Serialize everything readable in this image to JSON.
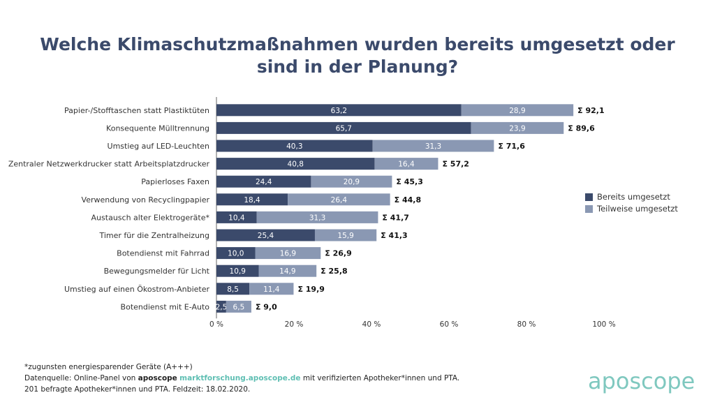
{
  "title_line1": "Welche Klimaschutzmaßnahmen wurden bereits umgesetzt oder",
  "title_line2": "sind in der Planung?",
  "colors": {
    "dark": "#3b4a6b",
    "light": "#8a98b3",
    "title": "#3b4a6b",
    "accent": "#5fbfb3"
  },
  "chart_data": {
    "type": "bar",
    "orientation": "horizontal",
    "stacked": true,
    "categories": [
      "Papier-/Stofftaschen statt Plastiktüten",
      "Konsequente Mülltrennung",
      "Umstieg auf LED-Leuchten",
      "Zentraler Netzwerkdrucker statt Arbeitsplatzdrucker",
      "Papierloses Faxen",
      "Verwendung von Recyclingpapier",
      "Austausch alter Elektrogeräte*",
      "Timer für die Zentralheizung",
      "Botendienst mit Fahrrad",
      "Bewegungsmelder für Licht",
      "Umstieg auf einen Ökostrom-Anbieter",
      "Botendienst mit E-Auto"
    ],
    "series": [
      {
        "name": "Bereits umgesetzt",
        "values": [
          63.2,
          65.7,
          40.3,
          40.8,
          24.4,
          18.4,
          10.4,
          25.4,
          10.0,
          10.9,
          8.5,
          2.5
        ],
        "labels": [
          "63,2",
          "65,7",
          "40,3",
          "40,8",
          "24,4",
          "18,4",
          "10,4",
          "25,4",
          "10,0",
          "10,9",
          "8,5",
          "2,5"
        ]
      },
      {
        "name": "Teilweise umgesetzt",
        "values": [
          28.9,
          23.9,
          31.3,
          16.4,
          20.9,
          26.4,
          31.3,
          15.9,
          16.9,
          14.9,
          11.4,
          6.5
        ],
        "labels": [
          "28,9",
          "23,9",
          "31,3",
          "16,4",
          "20,9",
          "26,4",
          "31,3",
          "15,9",
          "16,9",
          "14,9",
          "11,4",
          "6,5"
        ]
      }
    ],
    "totals": [
      "Σ 92,1",
      "Σ 89,6",
      "Σ 71,6",
      "Σ 57,2",
      "Σ 45,3",
      "Σ 44,8",
      "Σ 41,7",
      "Σ 41,3",
      "Σ 26,9",
      "Σ 25,8",
      "Σ 19,9",
      "Σ 9,0"
    ],
    "xlim": [
      0,
      100
    ],
    "xticks": [
      "0 %",
      "20 %",
      "40 %",
      "60 %",
      "80 %",
      "100 %"
    ],
    "legend_position": "right"
  },
  "footnote": "*zugunsten energiesparender Geräte (A+++)",
  "source_prefix": "Datenquelle: Online-Panel von ",
  "source_brand": "aposcope",
  "source_link": "marktforschung.aposcope.de",
  "source_suffix": " mit verifizierten Apotheker*innen und PTA.",
  "source_line2": "201 befragte Apotheker*innen und PTA. Feldzeit: 18.02.2020.",
  "logo_text": "aposcope"
}
